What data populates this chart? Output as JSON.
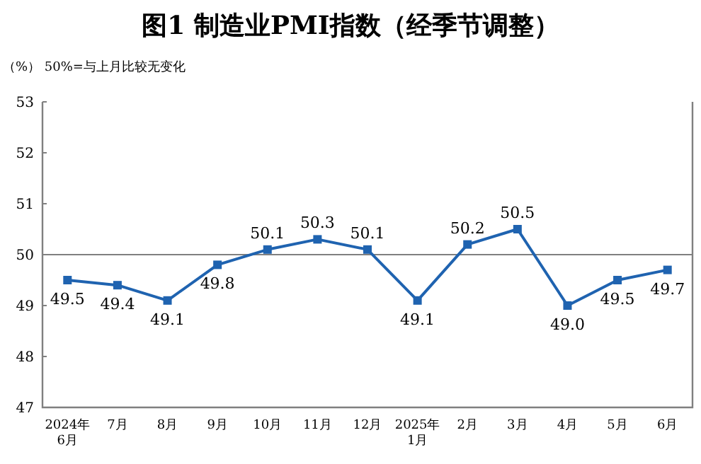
{
  "chart_data": {
    "type": "line",
    "title": "图1  制造业PMI指数（经季节调整）",
    "subtitle": "（%）  50%=与上月比较无变化",
    "categories": [
      "2024年\n6月",
      "7月",
      "8月",
      "9月",
      "10月",
      "11月",
      "12月",
      "2025年\n1月",
      "2月",
      "3月",
      "4月",
      "5月",
      "6月"
    ],
    "series": [
      {
        "color": "#1f63b0",
        "values": [
          49.5,
          49.4,
          49.1,
          49.8,
          50.1,
          50.3,
          50.1,
          49.1,
          50.2,
          50.5,
          49.0,
          49.5,
          49.7
        ],
        "value_labels": [
          "49.5",
          "49.4",
          "49.1",
          "49.8",
          "50.1",
          "50.3",
          "50.1",
          "49.1",
          "50.2",
          "50.5",
          "49.0",
          "49.5",
          "49.7"
        ]
      }
    ],
    "ylim": [
      47,
      53
    ],
    "yticks": [
      47,
      48,
      49,
      50,
      51,
      52,
      53
    ],
    "marker": "square",
    "grid": false,
    "ref_lines": [
      {
        "axis": "y",
        "value": 50,
        "color": "#808080"
      }
    ]
  }
}
